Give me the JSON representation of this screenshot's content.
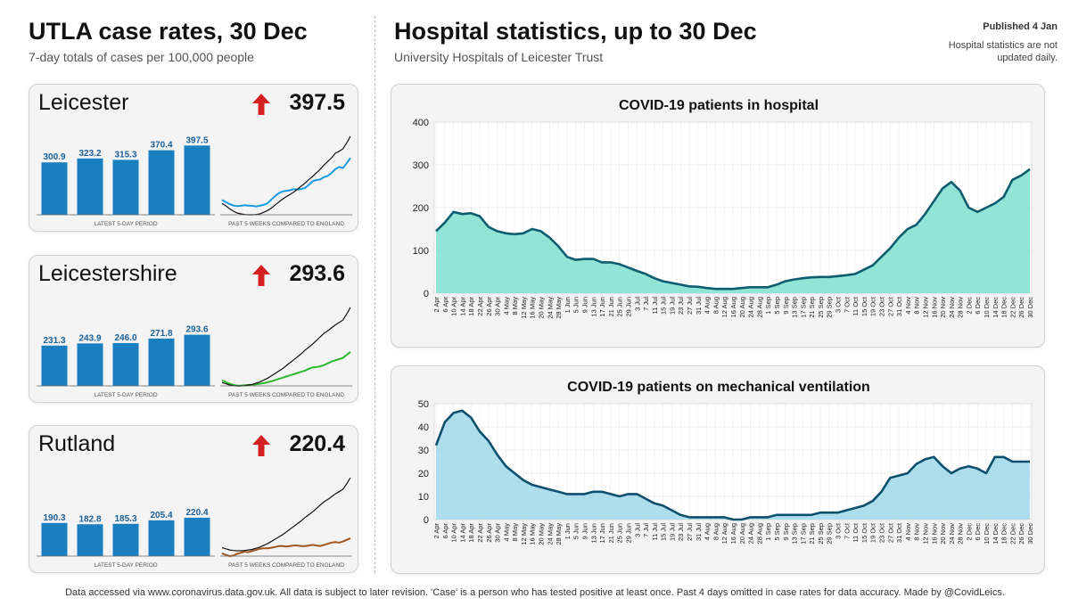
{
  "left": {
    "title": "UTLA case rates, 30 Dec",
    "subtitle": "7-day totals of cases per 100,000 people"
  },
  "right": {
    "title": "Hospital statistics, up to 30 Dec",
    "subtitle": "University Hospitals of Leicester Trust",
    "published": "Published 4 Jan",
    "note": "Hospital statistics are not updated daily."
  },
  "footer": "Data accessed via www.coronavirus.data.gov.uk. All data is subject to later revision. 'Case' is a person who has tested positive at least once. Past 4 days omitted in case rates for data accuracy. Made by @CovidLeics.",
  "colors": {
    "bar": "#1a7fc1",
    "arrow_up": "#d42020",
    "england_line": "#111111",
    "hosp_fill": "#7fe0cf",
    "hosp_line": "#0e5c6e",
    "vent_fill": "#9fd8ea",
    "vent_line": "#0e4f6e"
  },
  "chart_data": [
    {
      "type": "bar",
      "title": "Leicester",
      "headline_rate": "397.5",
      "trend": "up",
      "caption": "LATEST 5-DAY PERIOD",
      "values": [
        300.9,
        323.2,
        315.3,
        370.4,
        397.5
      ],
      "labels": [
        "300.9",
        "323.2",
        "315.3",
        "370.4",
        "397.5"
      ],
      "ylim": [
        0,
        440
      ]
    },
    {
      "type": "line",
      "title": "Leicester",
      "caption": "PAST 5 WEEKS COMPARED TO ENGLAND",
      "series": [
        {
          "color": "#1a9be0",
          "values": [
            160,
            152,
            146,
            141,
            139,
            140,
            142,
            140,
            140,
            138,
            140,
            143,
            148,
            160,
            172,
            182,
            188,
            190,
            192,
            196,
            194,
            196,
            200,
            210,
            222,
            226,
            228,
            236,
            240,
            250,
            262,
            270,
            266,
            282,
            300
          ]
        },
        {
          "color": "#111111",
          "values": [
            148,
            140,
            130,
            122,
            116,
            113,
            111,
            110,
            110,
            111,
            113,
            118,
            124,
            132,
            142,
            152,
            162,
            170,
            178,
            186,
            196,
            206,
            216,
            228,
            238,
            250,
            262,
            276,
            288,
            300,
            316,
            322,
            330,
            350,
            372
          ]
        }
      ]
    },
    {
      "type": "bar",
      "title": "Leicestershire",
      "headline_rate": "293.6",
      "trend": "up",
      "caption": "LATEST 5-DAY PERIOD",
      "values": [
        231.3,
        243.9,
        246.0,
        271.8,
        293.6
      ],
      "labels": [
        "231.3",
        "243.9",
        "246.0",
        "271.8",
        "293.6"
      ],
      "ylim": [
        0,
        440
      ]
    },
    {
      "type": "line",
      "title": "Leicestershire",
      "caption": "PAST 5 WEEKS COMPARED TO ENGLAND",
      "series": [
        {
          "color": "#2db82d",
          "values": [
            125,
            120,
            114,
            110,
            108,
            108,
            109,
            110,
            111,
            112,
            114,
            116,
            119,
            122,
            126,
            130,
            134,
            138,
            142,
            146,
            150,
            154,
            158,
            164,
            168,
            170,
            172,
            176,
            182,
            188,
            192,
            196,
            200,
            210,
            220
          ]
        },
        {
          "color": "#111111",
          "values": [
            118,
            114,
            110,
            108,
            107,
            107,
            108,
            110,
            112,
            116,
            120,
            126,
            132,
            140,
            148,
            156,
            164,
            174,
            184,
            194,
            204,
            214,
            226,
            236,
            246,
            258,
            270,
            282,
            290,
            300,
            310,
            318,
            326,
            346,
            368
          ]
        }
      ]
    },
    {
      "type": "bar",
      "title": "Rutland",
      "headline_rate": "220.4",
      "trend": "up",
      "caption": "LATEST 5-DAY PERIOD",
      "values": [
        190.3,
        182.8,
        185.3,
        205.4,
        220.4
      ],
      "labels": [
        "190.3",
        "182.8",
        "185.3",
        "205.4",
        "220.4"
      ],
      "ylim": [
        0,
        440
      ]
    },
    {
      "type": "line",
      "title": "Rutland",
      "caption": "PAST 5 WEEKS COMPARED TO ENGLAND",
      "series": [
        {
          "color": "#a0561e",
          "values": [
            98,
            92,
            88,
            90,
            96,
            100,
            104,
            102,
            106,
            110,
            114,
            116,
            116,
            118,
            120,
            124,
            124,
            122,
            124,
            126,
            126,
            124,
            124,
            126,
            128,
            126,
            124,
            128,
            132,
            136,
            138,
            136,
            140,
            146,
            152
          ]
        },
        {
          "color": "#111111",
          "values": [
            118,
            114,
            110,
            108,
            107,
            107,
            108,
            110,
            112,
            116,
            120,
            126,
            132,
            140,
            148,
            156,
            164,
            174,
            184,
            194,
            204,
            214,
            226,
            236,
            246,
            258,
            270,
            282,
            290,
            300,
            310,
            318,
            326,
            346,
            368
          ]
        }
      ]
    },
    {
      "type": "area",
      "title": "COVID-19 patients in hospital",
      "ylim": [
        0,
        400
      ],
      "yticks": [
        0,
        100,
        200,
        300,
        400
      ],
      "xlabels": [
        "2 Apr",
        "6 Apr",
        "10 Apr",
        "14 Apr",
        "18 Apr",
        "22 Apr",
        "26 Apr",
        "30 Apr",
        "4 May",
        "8 May",
        "12 May",
        "16 May",
        "20 May",
        "24 May",
        "28 May",
        "1 Jun",
        "5 Jun",
        "9 Jun",
        "13 Jun",
        "17 Jun",
        "21 Jun",
        "25 Jun",
        "29 Jun",
        "3 Jul",
        "7 Jul",
        "11 Jul",
        "15 Jul",
        "19 Jul",
        "23 Jul",
        "27 Jul",
        "31 Jul",
        "4 Aug",
        "8 Aug",
        "12 Aug",
        "16 Aug",
        "20 Aug",
        "24 Aug",
        "28 Aug",
        "1 Sep",
        "5 Sep",
        "9 Sep",
        "13 Sep",
        "17 Sep",
        "21 Sep",
        "25 Sep",
        "29 Sep",
        "3 Oct",
        "7 Oct",
        "11 Oct",
        "15 Oct",
        "19 Oct",
        "23 Oct",
        "27 Oct",
        "31 Oct",
        "4 Nov",
        "8 Nov",
        "12 Nov",
        "16 Nov",
        "20 Nov",
        "24 Nov",
        "28 Nov",
        "2 Dec",
        "6 Dec",
        "10 Dec",
        "14 Dec",
        "18 Dec",
        "22 Dec",
        "26 Dec",
        "30 Dec"
      ],
      "values": [
        145,
        165,
        190,
        185,
        187,
        180,
        155,
        145,
        140,
        138,
        140,
        150,
        145,
        130,
        110,
        85,
        78,
        80,
        80,
        72,
        72,
        68,
        60,
        52,
        45,
        35,
        28,
        24,
        20,
        16,
        15,
        12,
        10,
        10,
        10,
        12,
        14,
        14,
        14,
        20,
        28,
        32,
        35,
        37,
        38,
        38,
        40,
        42,
        45,
        55,
        65,
        85,
        105,
        130,
        150,
        160,
        185,
        215,
        245,
        260,
        240,
        200,
        190,
        200,
        210,
        225,
        265,
        275,
        290
      ]
    },
    {
      "type": "area",
      "title": "COVID-19 patients on mechanical ventilation",
      "ylim": [
        0,
        50
      ],
      "yticks": [
        0,
        10,
        20,
        30,
        40,
        50
      ],
      "xlabels": [
        "2 Apr",
        "6 Apr",
        "10 Apr",
        "14 Apr",
        "18 Apr",
        "22 Apr",
        "26 Apr",
        "30 Apr",
        "4 May",
        "8 May",
        "12 May",
        "16 May",
        "20 May",
        "24 May",
        "28 May",
        "1 Jun",
        "5 Jun",
        "9 Jun",
        "13 Jun",
        "17 Jun",
        "21 Jun",
        "25 Jun",
        "29 Jun",
        "3 Jul",
        "7 Jul",
        "11 Jul",
        "15 Jul",
        "19 Jul",
        "23 Jul",
        "27 Jul",
        "31 Jul",
        "4 Aug",
        "8 Aug",
        "12 Aug",
        "16 Aug",
        "20 Aug",
        "24 Aug",
        "28 Aug",
        "1 Sep",
        "5 Sep",
        "9 Sep",
        "13 Sep",
        "17 Sep",
        "21 Sep",
        "25 Sep",
        "29 Sep",
        "3 Oct",
        "7 Oct",
        "11 Oct",
        "15 Oct",
        "19 Oct",
        "23 Oct",
        "27 Oct",
        "31 Oct",
        "4 Nov",
        "8 Nov",
        "12 Nov",
        "16 Nov",
        "20 Nov",
        "24 Nov",
        "28 Nov",
        "2 Dec",
        "6 Dec",
        "10 Dec",
        "14 Dec",
        "18 Dec",
        "22 Dec",
        "26 Dec",
        "30 Dec"
      ],
      "values": [
        32,
        42,
        46,
        47,
        44,
        38,
        34,
        28,
        23,
        20,
        17,
        15,
        14,
        13,
        12,
        11,
        11,
        11,
        12,
        12,
        11,
        10,
        11,
        11,
        9,
        7,
        6,
        4,
        2,
        1,
        1,
        1,
        1,
        1,
        0,
        0,
        1,
        1,
        1,
        2,
        2,
        2,
        2,
        2,
        3,
        3,
        3,
        4,
        5,
        6,
        8,
        12,
        18,
        19,
        20,
        24,
        26,
        27,
        23,
        20,
        22,
        23,
        22,
        20,
        27,
        27,
        25,
        25,
        25
      ]
    }
  ]
}
